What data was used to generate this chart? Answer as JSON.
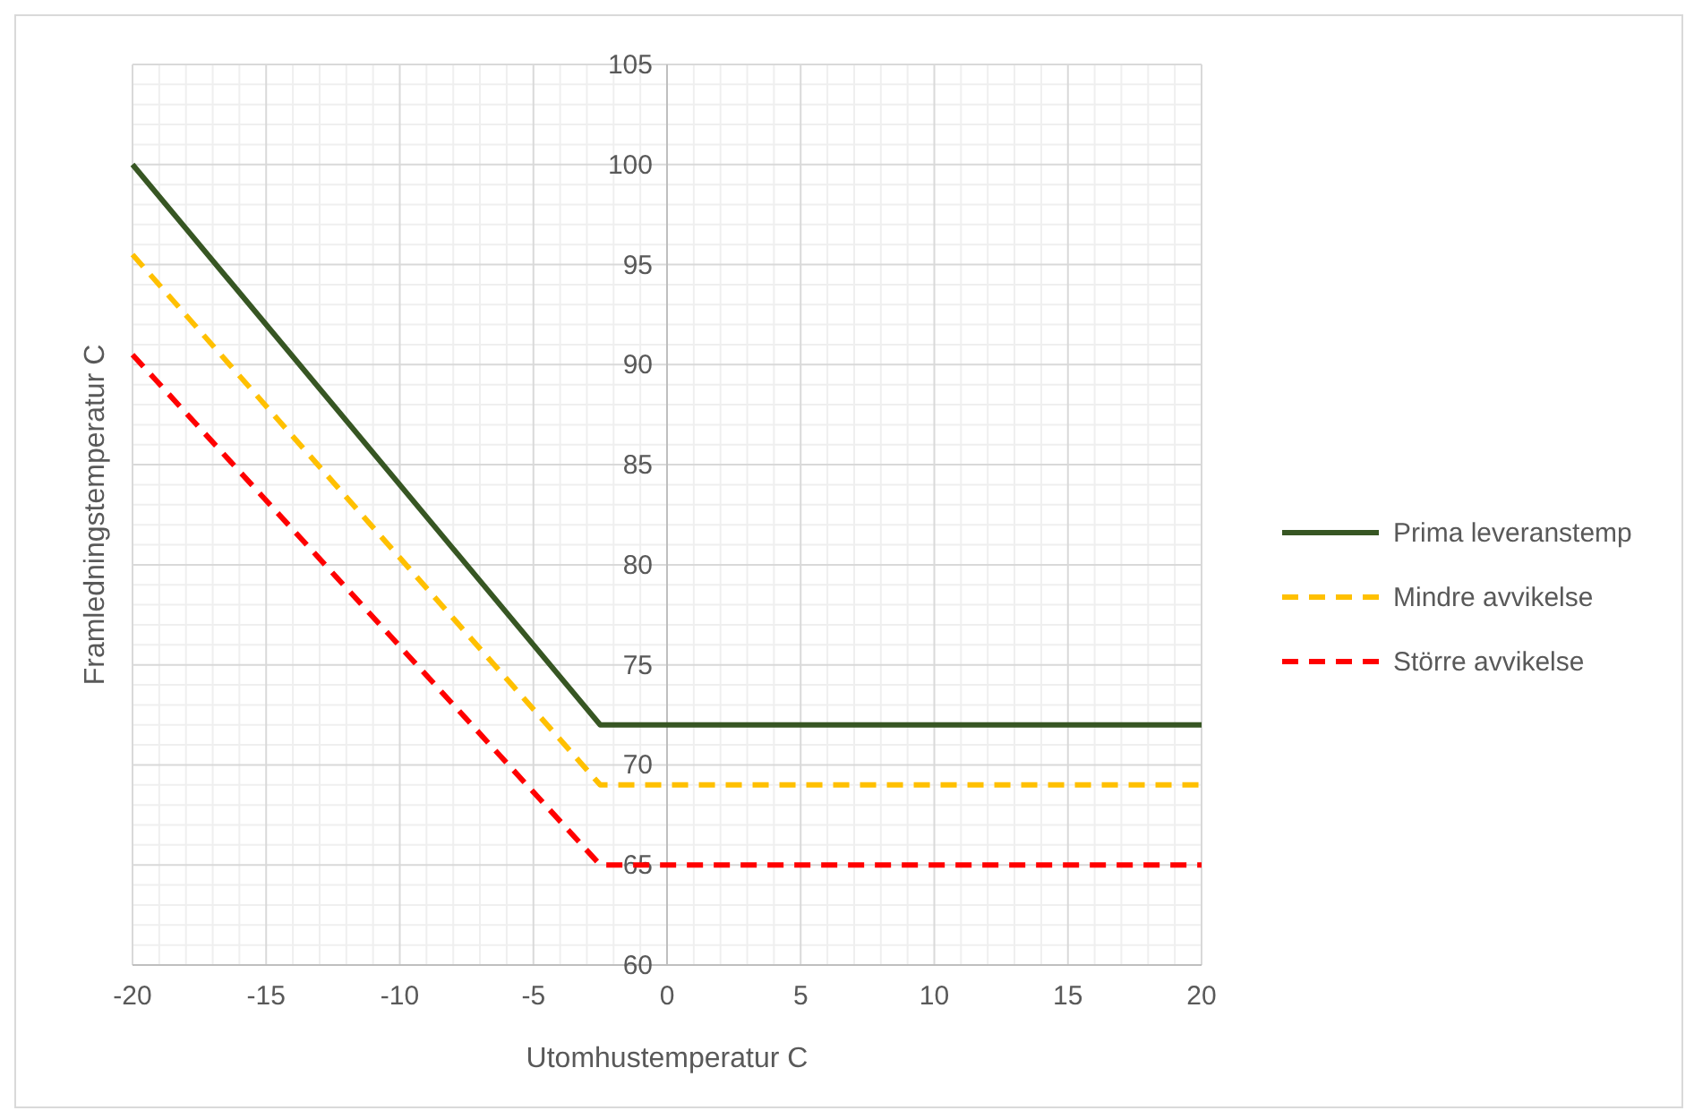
{
  "chart_data": {
    "type": "line",
    "xlabel": "Utomhustemperatur C",
    "ylabel": "Framledningstemperatur C",
    "series": [
      {
        "name": "Prima leveranstemp",
        "color": "#375623",
        "x": [
          -20,
          -2.5,
          20
        ],
        "values": [
          100,
          72,
          72
        ],
        "line_style": "solid"
      },
      {
        "name": "Mindre avvikelse",
        "color": "#ffc000",
        "x": [
          -20,
          -2.5,
          20
        ],
        "values": [
          95.5,
          69,
          69
        ],
        "line_style": "dashed"
      },
      {
        "name": "Större avvikelse",
        "color": "#ff0000",
        "x": [
          -20,
          -2.5,
          20
        ],
        "values": [
          90.5,
          65,
          65
        ],
        "line_style": "dashed"
      }
    ],
    "xlim": [
      -20,
      20
    ],
    "xticks": [
      -20,
      -15,
      -10,
      -5,
      0,
      5,
      10,
      15,
      20
    ],
    "ylim": [
      60,
      105
    ],
    "yticks": [
      60,
      65,
      70,
      75,
      80,
      85,
      90,
      95,
      100,
      105
    ],
    "grid": true,
    "legend": "right",
    "marker": "none"
  }
}
